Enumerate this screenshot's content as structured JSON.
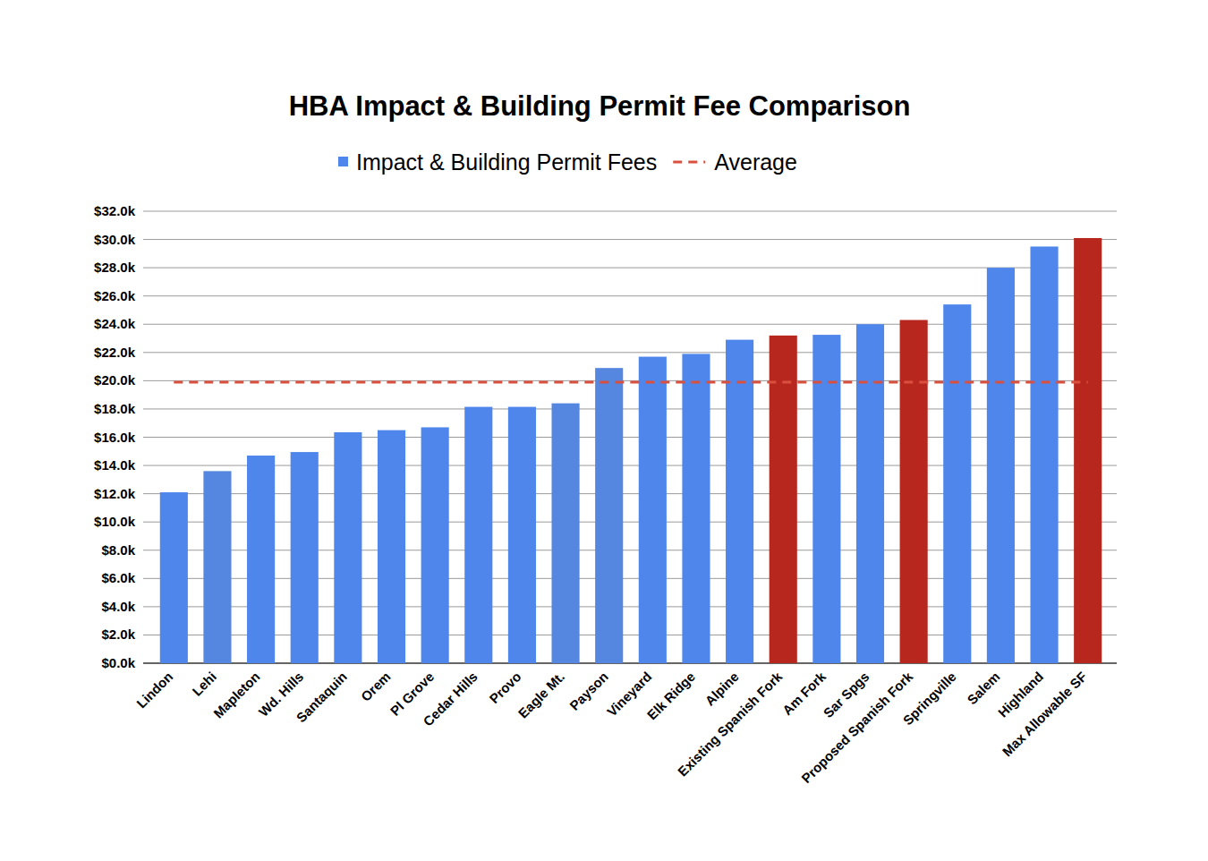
{
  "chart_data": {
    "type": "bar",
    "title": "HBA Impact & Building Permit Fee Comparison",
    "categories": [
      "Lindon",
      "Lehi",
      "Mapleton",
      "Wd. Hills",
      "Santaquin",
      "Orem",
      "Pl Grove",
      "Cedar Hills",
      "Provo",
      "Eagle Mt.",
      "Payson",
      "Vineyard",
      "Elk Ridge",
      "Alpine",
      "Existing Spanish Fork",
      "Am Fork",
      "Sar Spgs",
      "Proposed Spanish Fork",
      "Springville",
      "Salem",
      "Highland",
      "Max Allowable SF"
    ],
    "series": [
      {
        "name": "Impact & Building Permit Fees",
        "type": "bar",
        "color": "#4f86ec",
        "colors": [
          "#4f86ec",
          "#5587e0",
          "#4f86ec",
          "#4f86ec",
          "#4f86ec",
          "#4f86ec",
          "#4f86ec",
          "#4f86ec",
          "#4f86ec",
          "#5587e0",
          "#5587e0",
          "#4f86ec",
          "#4f86ec",
          "#4f86ec",
          "#b8271e",
          "#4f86ec",
          "#4f86ec",
          "#b8271e",
          "#4f86ec",
          "#4f86ec",
          "#4f86ec",
          "#b8271e"
        ],
        "values": [
          12100,
          13600,
          14700,
          14950,
          16350,
          16500,
          16700,
          18150,
          18150,
          18400,
          20900,
          21700,
          21900,
          22900,
          23200,
          23250,
          24000,
          24300,
          25400,
          28000,
          29500,
          30100
        ]
      },
      {
        "name": "Average",
        "type": "line",
        "line_style": "dashed",
        "color": "#d9503f",
        "values": [
          19900,
          19900,
          19900,
          19900,
          19900,
          19900,
          19900,
          19900,
          19900,
          19900,
          19900,
          19900,
          19900,
          19900,
          19900,
          19900,
          19900,
          19900,
          19900,
          19900,
          19900,
          19900
        ]
      }
    ],
    "ylim": [
      0,
      32000
    ],
    "yticks": [
      {
        "value": 0,
        "label": "$0.0k"
      },
      {
        "value": 2000,
        "label": "$2.0k"
      },
      {
        "value": 4000,
        "label": "$4.0k"
      },
      {
        "value": 6000,
        "label": "$6.0k"
      },
      {
        "value": 8000,
        "label": "$8.0k"
      },
      {
        "value": 10000,
        "label": "$10.0k"
      },
      {
        "value": 12000,
        "label": "$12.0k"
      },
      {
        "value": 14000,
        "label": "$14.0k"
      },
      {
        "value": 16000,
        "label": "$16.0k"
      },
      {
        "value": 18000,
        "label": "$18.0k"
      },
      {
        "value": 20000,
        "label": "$20.0k"
      },
      {
        "value": 22000,
        "label": "$22.0k"
      },
      {
        "value": 24000,
        "label": "$24.0k"
      },
      {
        "value": 26000,
        "label": "$26.0k"
      },
      {
        "value": 28000,
        "label": "$28.0k"
      },
      {
        "value": 30000,
        "label": "$30.0k"
      },
      {
        "value": 32000,
        "label": "$32.0k"
      }
    ],
    "grid": true,
    "legend": "top"
  }
}
